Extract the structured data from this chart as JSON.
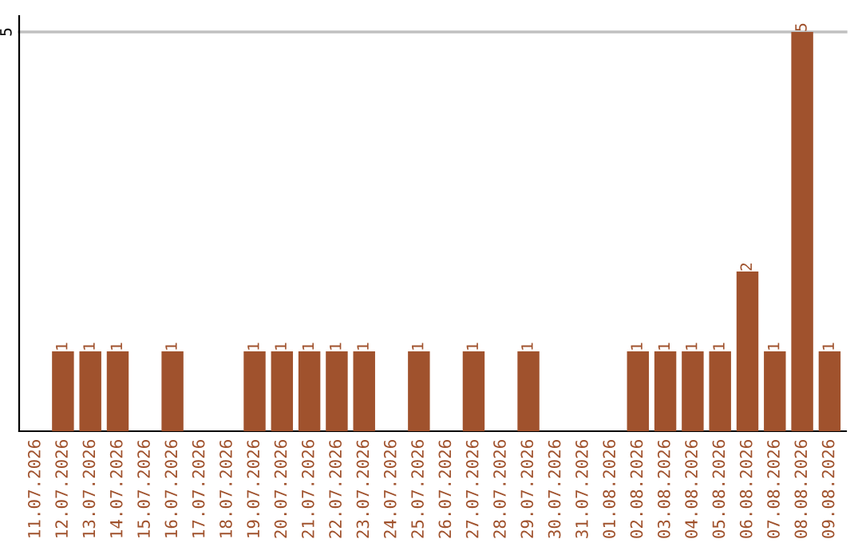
{
  "chart_data": {
    "type": "bar",
    "categories": [
      "11.07.2026",
      "12.07.2026",
      "13.07.2026",
      "14.07.2026",
      "15.07.2026",
      "16.07.2026",
      "17.07.2026",
      "18.07.2026",
      "19.07.2026",
      "20.07.2026",
      "21.07.2026",
      "22.07.2026",
      "23.07.2026",
      "24.07.2026",
      "25.07.2026",
      "26.07.2026",
      "27.07.2026",
      "28.07.2026",
      "29.07.2026",
      "30.07.2026",
      "31.07.2026",
      "01.08.2026",
      "02.08.2026",
      "03.08.2026",
      "04.08.2026",
      "05.08.2026",
      "06.08.2026",
      "07.08.2026",
      "08.08.2026",
      "09.08.2026"
    ],
    "values": [
      0,
      1,
      1,
      1,
      0,
      1,
      0,
      0,
      1,
      1,
      1,
      1,
      1,
      0,
      1,
      0,
      1,
      0,
      1,
      0,
      0,
      0,
      1,
      1,
      1,
      1,
      2,
      1,
      5,
      1
    ],
    "value_labels": [
      null,
      "1",
      "1",
      "1",
      null,
      "1",
      null,
      null,
      "1",
      "1",
      "1",
      "1",
      "1",
      null,
      "1",
      null,
      "1",
      null,
      "1",
      null,
      null,
      null,
      "1",
      "1",
      "1",
      "1",
      "2",
      "1",
      "5",
      "1"
    ],
    "color": "#a0522d",
    "ylim": [
      0,
      5.2
    ],
    "yticks": [
      5
    ],
    "grid": "y"
  }
}
